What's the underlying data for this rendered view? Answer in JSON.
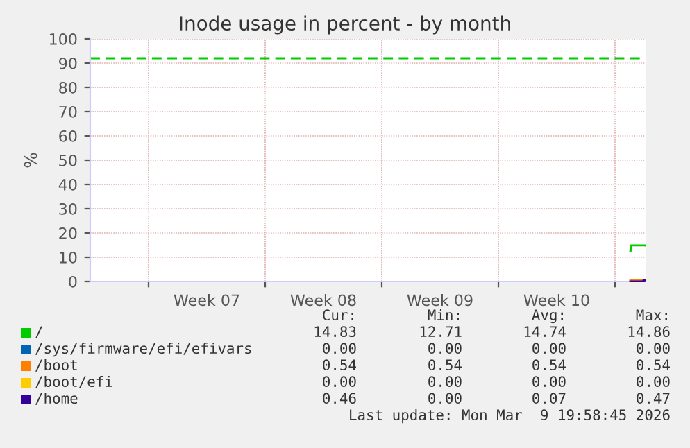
{
  "chart_data": {
    "type": "step",
    "title": "Inode usage in percent - by month",
    "ylabel": "%",
    "xlim": [
      "2026-02-04T12:00",
      "2026-03-09T20:00"
    ],
    "xticks": [
      {
        "value": "2026-02-08",
        "label": null
      },
      {
        "value": "2026-02-11T12:00",
        "label": "Week 07"
      },
      {
        "value": "2026-02-15",
        "label": null
      },
      {
        "value": "2026-02-18T12:00",
        "label": "Week 08"
      },
      {
        "value": "2026-02-22",
        "label": null
      },
      {
        "value": "2026-02-25T12:00",
        "label": "Week 09"
      },
      {
        "value": "2026-03-01",
        "label": null
      },
      {
        "value": "2026-03-04T12:00",
        "label": "Week 10"
      },
      {
        "value": "2026-03-08",
        "label": null
      }
    ],
    "ylim": [
      0,
      100
    ],
    "yticks": [
      0,
      10,
      20,
      30,
      40,
      50,
      60,
      70,
      80,
      90,
      100
    ],
    "grid": true,
    "legend": "bottom",
    "ref_lines": [
      {
        "axis": "y",
        "value": 92,
        "label": null,
        "color": "#00cc00",
        "line_style": "dashed"
      }
    ],
    "series": [
      {
        "name": "/",
        "color": "#00cc00",
        "x": [
          "2026-03-08T22:00",
          "2026-03-08T23:00",
          "2026-03-09T20:00"
        ],
        "values": [
          12.7,
          14.9,
          14.8
        ]
      },
      {
        "name": "/sys/firmware/efi/efivars",
        "color": "#0066b3"
      },
      {
        "name": "/boot",
        "color": "#ff8000",
        "x": [
          "2026-03-08T22:00",
          "2026-03-09T20:00"
        ],
        "values": [
          0.5,
          0.5
        ]
      },
      {
        "name": "/boot/efi",
        "color": "#ffcc00"
      },
      {
        "name": "/home",
        "color": "#330099",
        "x": [
          "2026-03-08T22:00",
          "2026-03-09T16:00",
          "2026-03-09T17:00",
          "2026-03-09T20:00"
        ],
        "values": [
          0,
          0,
          0.5,
          0.5
        ]
      }
    ],
    "annotations": [
      "Cur:",
      "Min:",
      "Avg:",
      "Max:",
      "14.83",
      "12.71",
      "14.74",
      "14.86",
      "0.00",
      "0.00",
      "0.00",
      "0.00",
      "0.54",
      "0.54",
      "0.54",
      "0.54",
      "0.00",
      "0.00",
      "0.00",
      "0.00",
      "0.46",
      "0.00",
      "0.07",
      "0.47",
      "Last update: Mon Mar  9 19:58:45 2026"
    ]
  }
}
